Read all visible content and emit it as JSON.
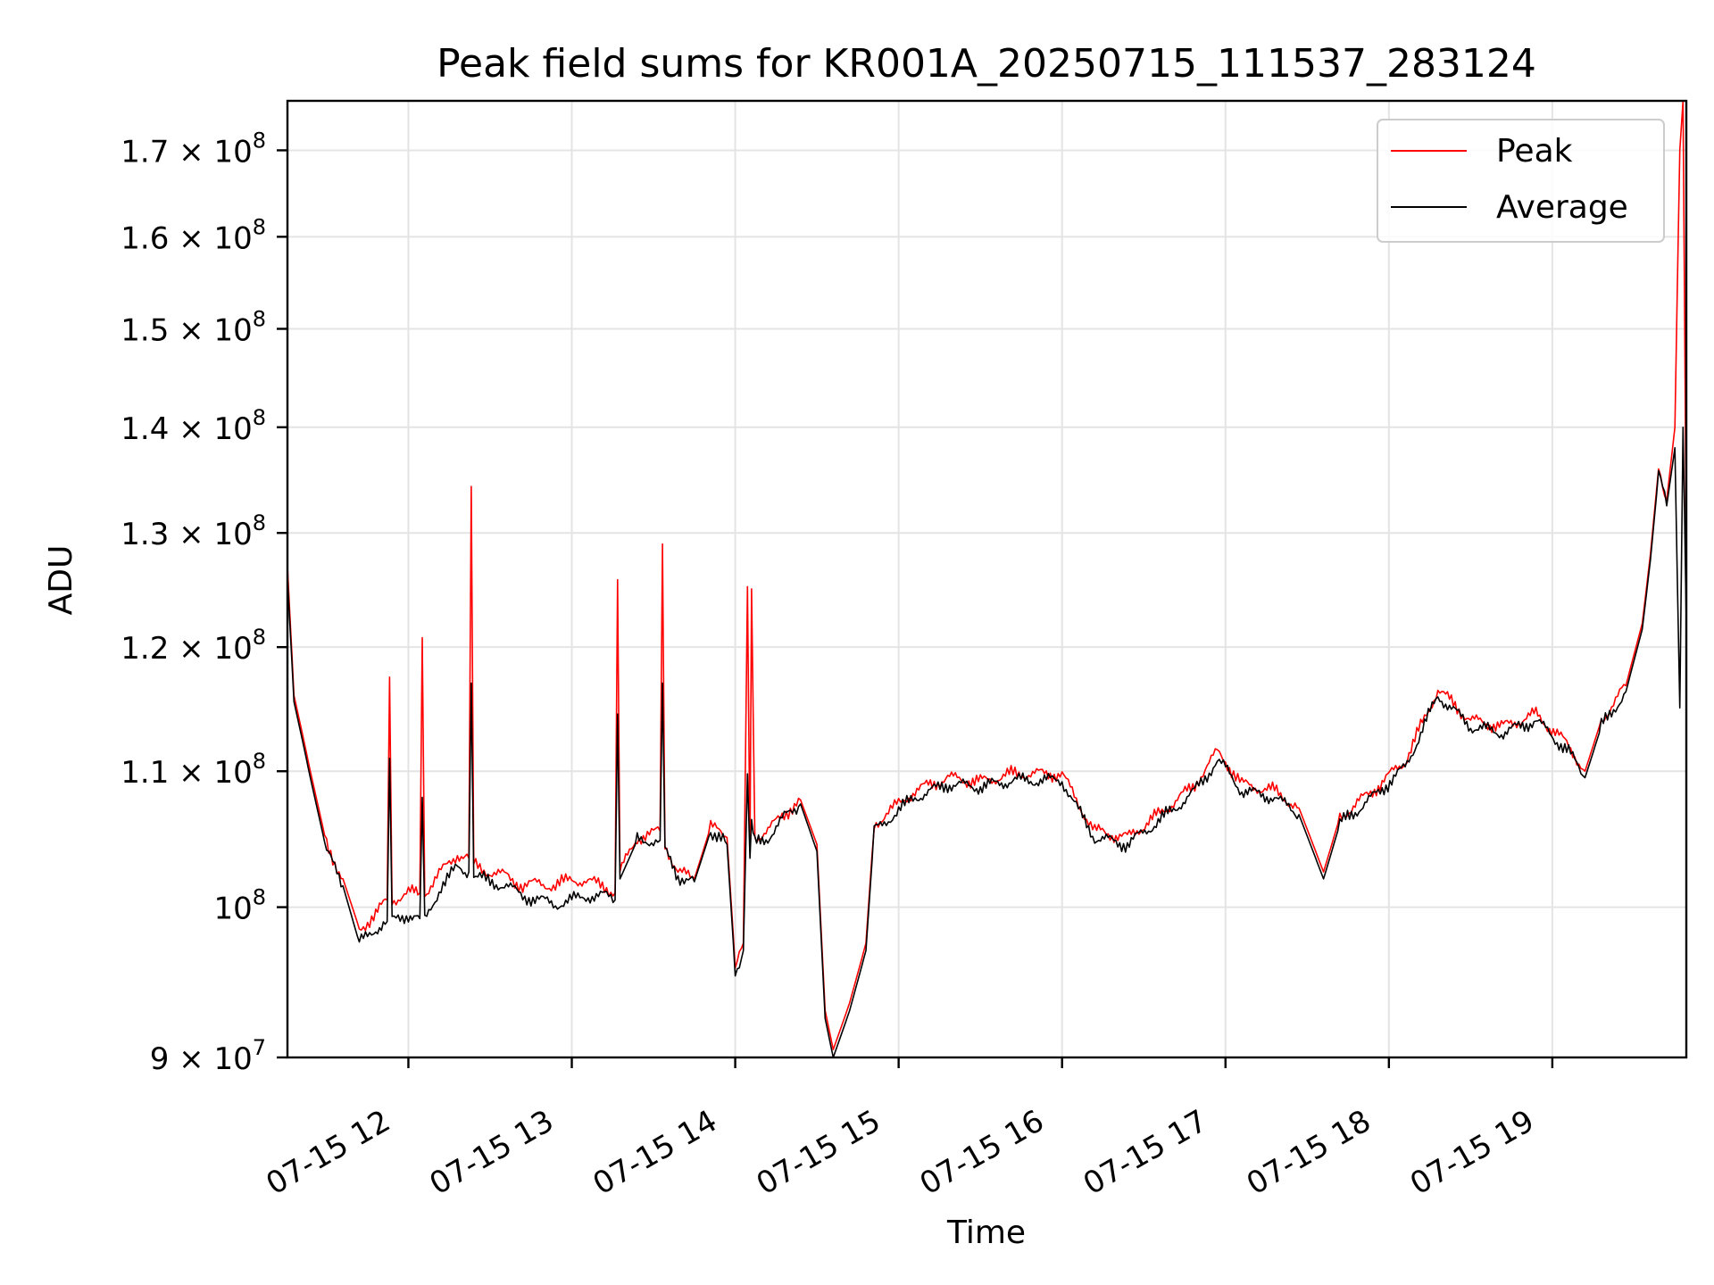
{
  "chart_data": {
    "type": "line",
    "title": "Peak field sums for KR001A_20250715_111537_283124",
    "xlabel": "Time",
    "ylabel": "ADU",
    "x_unit": "hour of 2025-07-15",
    "xlim": [
      11.26,
      19.82
    ],
    "ylim": [
      90000000,
      176000000
    ],
    "yscale": "log",
    "grid": true,
    "legend_position": "top-right",
    "x_ticks": [
      {
        "value": 12,
        "label": "07-15 12"
      },
      {
        "value": 13,
        "label": "07-15 13"
      },
      {
        "value": 14,
        "label": "07-15 14"
      },
      {
        "value": 15,
        "label": "07-15 15"
      },
      {
        "value": 16,
        "label": "07-15 16"
      },
      {
        "value": 17,
        "label": "07-15 17"
      },
      {
        "value": 18,
        "label": "07-15 18"
      },
      {
        "value": 19,
        "label": "07-15 19"
      }
    ],
    "y_ticks": [
      {
        "value": 90000000,
        "mantissa": "9",
        "exp": "7"
      },
      {
        "value": 100000000,
        "mantissa": "",
        "exp": "8"
      },
      {
        "value": 110000000,
        "mantissa": "1.1",
        "exp": "8"
      },
      {
        "value": 120000000,
        "mantissa": "1.2",
        "exp": "8"
      },
      {
        "value": 130000000,
        "mantissa": "1.3",
        "exp": "8"
      },
      {
        "value": 140000000,
        "mantissa": "1.4",
        "exp": "8"
      },
      {
        "value": 150000000,
        "mantissa": "1.5",
        "exp": "8"
      },
      {
        "value": 160000000,
        "mantissa": "1.6",
        "exp": "8"
      },
      {
        "value": 170000000,
        "mantissa": "1.7",
        "exp": "8"
      }
    ],
    "series": [
      {
        "name": "Peak",
        "color": "#ff0000",
        "points": [
          [
            11.26,
            127000000
          ],
          [
            11.3,
            116000000
          ],
          [
            11.35,
            113000000
          ],
          [
            11.4,
            110000000
          ],
          [
            11.5,
            104500000
          ],
          [
            11.6,
            102000000
          ],
          [
            11.7,
            98500000
          ],
          [
            11.8,
            99500000
          ],
          [
            11.87,
            100500000
          ],
          [
            11.885,
            117500000
          ],
          [
            11.9,
            100500000
          ],
          [
            12.0,
            101000000
          ],
          [
            12.07,
            101000000
          ],
          [
            12.085,
            120800000
          ],
          [
            12.1,
            101000000
          ],
          [
            12.2,
            102500000
          ],
          [
            12.3,
            103800000
          ],
          [
            12.37,
            103500000
          ],
          [
            12.385,
            134300000
          ],
          [
            12.4,
            103000000
          ],
          [
            12.5,
            102500000
          ],
          [
            12.6,
            102200000
          ],
          [
            12.7,
            101500000
          ],
          [
            12.8,
            101700000
          ],
          [
            12.9,
            101500000
          ],
          [
            13.0,
            102000000
          ],
          [
            13.1,
            101800000
          ],
          [
            13.2,
            101500000
          ],
          [
            13.265,
            101000000
          ],
          [
            13.28,
            125800000
          ],
          [
            13.295,
            102500000
          ],
          [
            13.4,
            105000000
          ],
          [
            13.5,
            105300000
          ],
          [
            13.54,
            105500000
          ],
          [
            13.555,
            129000000
          ],
          [
            13.57,
            104500000
          ],
          [
            13.65,
            102500000
          ],
          [
            13.75,
            102000000
          ],
          [
            13.85,
            105800000
          ],
          [
            13.95,
            105000000
          ],
          [
            14.0,
            96000000
          ],
          [
            14.05,
            97500000
          ],
          [
            14.075,
            125200000
          ],
          [
            14.09,
            104000000
          ],
          [
            14.1,
            125000000
          ],
          [
            14.12,
            105000000
          ],
          [
            14.2,
            105500000
          ],
          [
            14.3,
            106800000
          ],
          [
            14.4,
            107800000
          ],
          [
            14.5,
            104500000
          ],
          [
            14.55,
            93000000
          ],
          [
            14.6,
            90500000
          ],
          [
            14.7,
            93500000
          ],
          [
            14.8,
            97500000
          ],
          [
            14.85,
            106000000
          ],
          [
            15.0,
            107500000
          ],
          [
            15.1,
            108500000
          ],
          [
            15.3,
            109500000
          ],
          [
            15.5,
            109200000
          ],
          [
            15.7,
            109800000
          ],
          [
            16.0,
            109800000
          ],
          [
            16.1,
            107500000
          ],
          [
            16.2,
            105500000
          ],
          [
            16.4,
            105000000
          ],
          [
            16.6,
            106800000
          ],
          [
            16.8,
            108800000
          ],
          [
            16.95,
            111500000
          ],
          [
            17.0,
            110800000
          ],
          [
            17.1,
            109000000
          ],
          [
            17.3,
            108500000
          ],
          [
            17.45,
            107200000
          ],
          [
            17.6,
            102500000
          ],
          [
            17.7,
            106500000
          ],
          [
            17.9,
            108500000
          ],
          [
            18.1,
            110800000
          ],
          [
            18.3,
            116500000
          ],
          [
            18.5,
            114000000
          ],
          [
            18.7,
            113500000
          ],
          [
            18.9,
            114500000
          ],
          [
            19.1,
            112000000
          ],
          [
            19.2,
            110000000
          ],
          [
            19.3,
            114000000
          ],
          [
            19.45,
            116800000
          ],
          [
            19.55,
            122000000
          ],
          [
            19.6,
            128000000
          ],
          [
            19.65,
            136000000
          ],
          [
            19.7,
            133000000
          ],
          [
            19.75,
            140000000
          ],
          [
            19.78,
            170000000
          ],
          [
            19.8,
            176000000
          ],
          [
            19.82,
            128000000
          ]
        ]
      },
      {
        "name": "Average",
        "color": "#000000",
        "points": [
          [
            11.26,
            126000000
          ],
          [
            11.3,
            115500000
          ],
          [
            11.35,
            112500000
          ],
          [
            11.4,
            109500000
          ],
          [
            11.5,
            104000000
          ],
          [
            11.6,
            101500000
          ],
          [
            11.7,
            97500000
          ],
          [
            11.8,
            98500000
          ],
          [
            11.87,
            99000000
          ],
          [
            11.885,
            111000000
          ],
          [
            11.9,
            99000000
          ],
          [
            12.0,
            99500000
          ],
          [
            12.07,
            99200000
          ],
          [
            12.085,
            108000000
          ],
          [
            12.1,
            99000000
          ],
          [
            12.2,
            101500000
          ],
          [
            12.3,
            102800000
          ],
          [
            12.37,
            102500000
          ],
          [
            12.385,
            117000000
          ],
          [
            12.4,
            102200000
          ],
          [
            12.5,
            101800000
          ],
          [
            12.6,
            101500000
          ],
          [
            12.7,
            100800000
          ],
          [
            12.8,
            100500000
          ],
          [
            12.9,
            100200000
          ],
          [
            13.0,
            100500000
          ],
          [
            13.1,
            100800000
          ],
          [
            13.2,
            100800000
          ],
          [
            13.265,
            100500000
          ],
          [
            13.28,
            114500000
          ],
          [
            13.295,
            102000000
          ],
          [
            13.4,
            104800000
          ],
          [
            13.5,
            104800000
          ],
          [
            13.54,
            104800000
          ],
          [
            13.555,
            117000000
          ],
          [
            13.57,
            104000000
          ],
          [
            13.65,
            102200000
          ],
          [
            13.75,
            101800000
          ],
          [
            13.85,
            105500000
          ],
          [
            13.95,
            104500000
          ],
          [
            14.0,
            95500000
          ],
          [
            14.05,
            97000000
          ],
          [
            14.075,
            109800000
          ],
          [
            14.09,
            103500000
          ],
          [
            14.1,
            106000000
          ],
          [
            14.12,
            104500000
          ],
          [
            14.2,
            105000000
          ],
          [
            14.3,
            106500000
          ],
          [
            14.4,
            107500000
          ],
          [
            14.5,
            104000000
          ],
          [
            14.55,
            92500000
          ],
          [
            14.6,
            90000000
          ],
          [
            14.7,
            93000000
          ],
          [
            14.8,
            97000000
          ],
          [
            14.85,
            105500000
          ],
          [
            15.0,
            107000000
          ],
          [
            15.1,
            108000000
          ],
          [
            15.3,
            109000000
          ],
          [
            15.5,
            108800000
          ],
          [
            15.7,
            109300000
          ],
          [
            16.0,
            109300000
          ],
          [
            16.1,
            107000000
          ],
          [
            16.2,
            105000000
          ],
          [
            16.4,
            104500000
          ],
          [
            16.6,
            106300000
          ],
          [
            16.8,
            108300000
          ],
          [
            16.95,
            110800000
          ],
          [
            17.0,
            110200000
          ],
          [
            17.1,
            108500000
          ],
          [
            17.3,
            108000000
          ],
          [
            17.45,
            106700000
          ],
          [
            17.6,
            102000000
          ],
          [
            17.7,
            106000000
          ],
          [
            17.9,
            108000000
          ],
          [
            18.1,
            110300000
          ],
          [
            18.3,
            116000000
          ],
          [
            18.5,
            113500000
          ],
          [
            18.7,
            113000000
          ],
          [
            18.9,
            114000000
          ],
          [
            19.1,
            111500000
          ],
          [
            19.2,
            109500000
          ],
          [
            19.3,
            113500000
          ],
          [
            19.45,
            116300000
          ],
          [
            19.55,
            121500000
          ],
          [
            19.6,
            127500000
          ],
          [
            19.65,
            135500000
          ],
          [
            19.7,
            132500000
          ],
          [
            19.75,
            138000000
          ],
          [
            19.78,
            115000000
          ],
          [
            19.8,
            140000000
          ],
          [
            19.82,
            122000000
          ]
        ]
      }
    ]
  }
}
